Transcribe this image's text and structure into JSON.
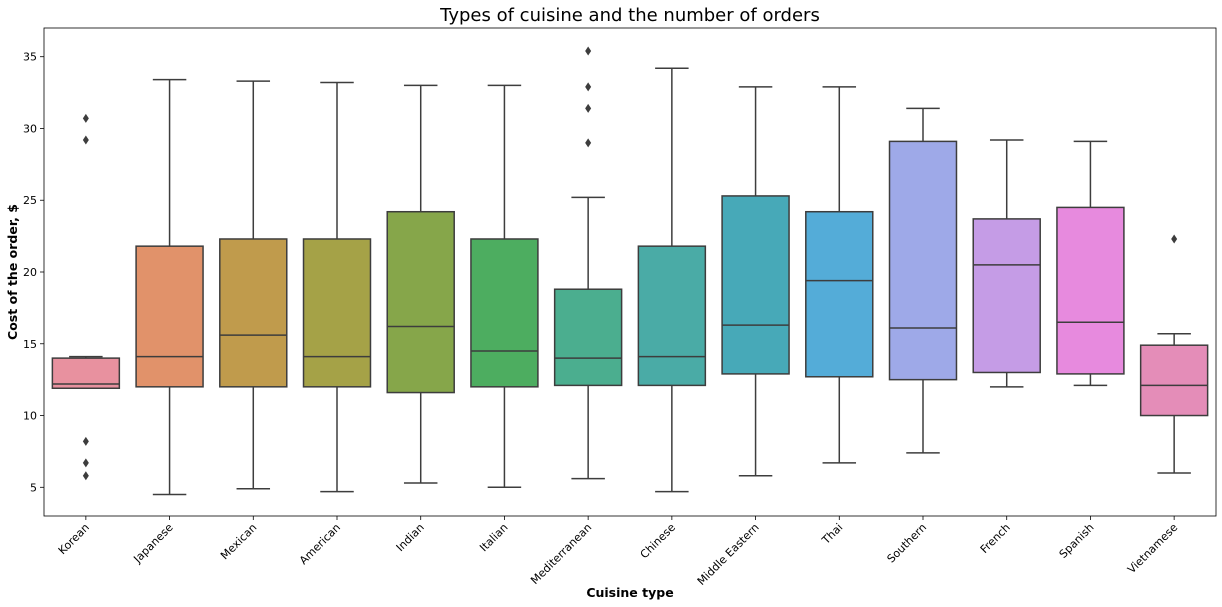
{
  "chart_data": {
    "type": "box",
    "title": "Types of cuisine and the number of orders",
    "xlabel": "Cuisine type",
    "ylabel": "Cost of the order, $",
    "ylim": [
      3,
      37
    ],
    "yticks": [
      5,
      10,
      15,
      20,
      25,
      30,
      35
    ],
    "grid": false,
    "legend": "none",
    "categories": [
      "Korean",
      "Japanese",
      "Mexican",
      "American",
      "Indian",
      "Italian",
      "Mediterranean",
      "Chinese",
      "Middle Eastern",
      "Thai",
      "Southern",
      "French",
      "Spanish",
      "Vietnamese"
    ],
    "boxes": [
      {
        "category": "Korean",
        "whisker_low": 11.9,
        "q1": 11.9,
        "median": 12.2,
        "q3": 14.0,
        "whisker_high": 14.1,
        "outliers": [
          5.8,
          6.7,
          8.2,
          29.2,
          30.7
        ],
        "color": "#e8919f"
      },
      {
        "category": "Japanese",
        "whisker_low": 4.5,
        "q1": 12.0,
        "median": 14.1,
        "q3": 21.8,
        "whisker_high": 33.4,
        "outliers": [],
        "color": "#e1926a"
      },
      {
        "category": "Mexican",
        "whisker_low": 4.9,
        "q1": 12.0,
        "median": 15.6,
        "q3": 22.3,
        "whisker_high": 33.3,
        "outliers": [],
        "color": "#c09b4c"
      },
      {
        "category": "American",
        "whisker_low": 4.7,
        "q1": 12.0,
        "median": 14.1,
        "q3": 22.3,
        "whisker_high": 33.2,
        "outliers": [],
        "color": "#a5a247"
      },
      {
        "category": "Indian",
        "whisker_low": 5.3,
        "q1": 11.6,
        "median": 16.2,
        "q3": 24.2,
        "whisker_high": 33.0,
        "outliers": [],
        "color": "#86a64a"
      },
      {
        "category": "Italian",
        "whisker_low": 5.0,
        "q1": 12.0,
        "median": 14.5,
        "q3": 22.3,
        "whisker_high": 33.0,
        "outliers": [],
        "color": "#4dad60"
      },
      {
        "category": "Mediterranean",
        "whisker_low": 5.6,
        "q1": 12.1,
        "median": 14.0,
        "q3": 18.8,
        "whisker_high": 25.2,
        "outliers": [
          29.0,
          31.4,
          32.9,
          35.4
        ],
        "color": "#4bae8f"
      },
      {
        "category": "Chinese",
        "whisker_low": 4.7,
        "q1": 12.1,
        "median": 14.1,
        "q3": 21.8,
        "whisker_high": 34.2,
        "outliers": [],
        "color": "#4aaba6"
      },
      {
        "category": "Middle Eastern",
        "whisker_low": 5.8,
        "q1": 12.9,
        "median": 16.3,
        "q3": 25.3,
        "whisker_high": 32.9,
        "outliers": [],
        "color": "#47a9b8"
      },
      {
        "category": "Thai",
        "whisker_low": 6.7,
        "q1": 12.7,
        "median": 19.4,
        "q3": 24.2,
        "whisker_high": 32.9,
        "outliers": [],
        "color": "#54acd8"
      },
      {
        "category": "Southern",
        "whisker_low": 7.4,
        "q1": 12.5,
        "median": 16.1,
        "q3": 29.1,
        "whisker_high": 31.4,
        "outliers": [],
        "color": "#9ea9e8"
      },
      {
        "category": "French",
        "whisker_low": 12.0,
        "q1": 13.0,
        "median": 20.5,
        "q3": 23.7,
        "whisker_high": 29.2,
        "outliers": [],
        "color": "#c59ce6"
      },
      {
        "category": "Spanish",
        "whisker_low": 12.1,
        "q1": 12.9,
        "median": 16.5,
        "q3": 24.5,
        "whisker_high": 29.1,
        "outliers": [],
        "color": "#e78ade"
      },
      {
        "category": "Vietnamese",
        "whisker_low": 6.0,
        "q1": 10.0,
        "median": 12.1,
        "q3": 14.9,
        "whisker_high": 15.7,
        "outliers": [
          22.3
        ],
        "color": "#e48db8"
      }
    ]
  }
}
